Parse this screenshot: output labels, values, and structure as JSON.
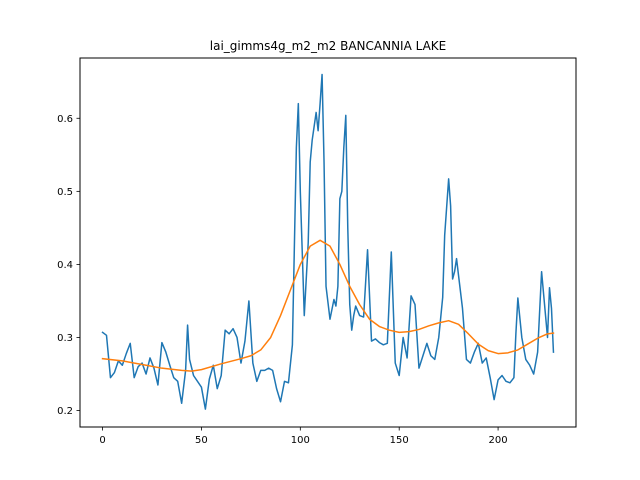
{
  "chart_data": {
    "type": "line",
    "title": "lai_gimms4g_m2_m2 BANCANNIA LAKE",
    "xlabel": "",
    "ylabel": "",
    "xlim": [
      -11.4,
      239.4
    ],
    "ylim": [
      0.1775,
      0.6825
    ],
    "xticks": [
      0,
      50,
      100,
      150,
      200
    ],
    "yticks": [
      0.2,
      0.3,
      0.4,
      0.5,
      0.6
    ],
    "xtick_labels": [
      "0",
      "50",
      "100",
      "150",
      "200"
    ],
    "ytick_labels": [
      "0.2",
      "0.3",
      "0.4",
      "0.5",
      "0.6"
    ],
    "grid": false,
    "series": [
      {
        "color": "#1f77b4",
        "points": [
          [
            0,
            0.307
          ],
          [
            2,
            0.303
          ],
          [
            4,
            0.245
          ],
          [
            6,
            0.252
          ],
          [
            8,
            0.268
          ],
          [
            10,
            0.262
          ],
          [
            12,
            0.278
          ],
          [
            14,
            0.292
          ],
          [
            16,
            0.245
          ],
          [
            18,
            0.26
          ],
          [
            20,
            0.265
          ],
          [
            22,
            0.25
          ],
          [
            24,
            0.272
          ],
          [
            26,
            0.258
          ],
          [
            28,
            0.235
          ],
          [
            30,
            0.293
          ],
          [
            32,
            0.28
          ],
          [
            34,
            0.262
          ],
          [
            36,
            0.245
          ],
          [
            38,
            0.24
          ],
          [
            40,
            0.21
          ],
          [
            42,
            0.255
          ],
          [
            43,
            0.317
          ],
          [
            44,
            0.27
          ],
          [
            46,
            0.248
          ],
          [
            48,
            0.24
          ],
          [
            50,
            0.232
          ],
          [
            52,
            0.202
          ],
          [
            54,
            0.243
          ],
          [
            56,
            0.262
          ],
          [
            58,
            0.23
          ],
          [
            60,
            0.248
          ],
          [
            62,
            0.31
          ],
          [
            64,
            0.305
          ],
          [
            66,
            0.312
          ],
          [
            68,
            0.3
          ],
          [
            70,
            0.265
          ],
          [
            72,
            0.295
          ],
          [
            74,
            0.35
          ],
          [
            76,
            0.265
          ],
          [
            78,
            0.24
          ],
          [
            80,
            0.255
          ],
          [
            82,
            0.255
          ],
          [
            84,
            0.258
          ],
          [
            86,
            0.255
          ],
          [
            88,
            0.23
          ],
          [
            90,
            0.212
          ],
          [
            92,
            0.24
          ],
          [
            94,
            0.238
          ],
          [
            96,
            0.29
          ],
          [
            98,
            0.56
          ],
          [
            99,
            0.62
          ],
          [
            100,
            0.5
          ],
          [
            102,
            0.33
          ],
          [
            104,
            0.43
          ],
          [
            105,
            0.54
          ],
          [
            106,
            0.57
          ],
          [
            108,
            0.608
          ],
          [
            109,
            0.583
          ],
          [
            110,
            0.62
          ],
          [
            111,
            0.66
          ],
          [
            112,
            0.54
          ],
          [
            113,
            0.37
          ],
          [
            115,
            0.325
          ],
          [
            117,
            0.352
          ],
          [
            118,
            0.343
          ],
          [
            119,
            0.37
          ],
          [
            120,
            0.49
          ],
          [
            121,
            0.5
          ],
          [
            122,
            0.56
          ],
          [
            123,
            0.604
          ],
          [
            124,
            0.45
          ],
          [
            125,
            0.345
          ],
          [
            126,
            0.31
          ],
          [
            127,
            0.33
          ],
          [
            128,
            0.343
          ],
          [
            130,
            0.33
          ],
          [
            132,
            0.328
          ],
          [
            134,
            0.42
          ],
          [
            136,
            0.295
          ],
          [
            138,
            0.298
          ],
          [
            140,
            0.293
          ],
          [
            142,
            0.29
          ],
          [
            144,
            0.292
          ],
          [
            146,
            0.417
          ],
          [
            148,
            0.265
          ],
          [
            150,
            0.248
          ],
          [
            152,
            0.3
          ],
          [
            154,
            0.272
          ],
          [
            156,
            0.357
          ],
          [
            158,
            0.345
          ],
          [
            160,
            0.258
          ],
          [
            162,
            0.275
          ],
          [
            164,
            0.292
          ],
          [
            166,
            0.275
          ],
          [
            168,
            0.27
          ],
          [
            170,
            0.3
          ],
          [
            172,
            0.355
          ],
          [
            173,
            0.44
          ],
          [
            175,
            0.517
          ],
          [
            176,
            0.48
          ],
          [
            177,
            0.38
          ],
          [
            178,
            0.39
          ],
          [
            179,
            0.408
          ],
          [
            180,
            0.385
          ],
          [
            182,
            0.34
          ],
          [
            184,
            0.27
          ],
          [
            186,
            0.265
          ],
          [
            188,
            0.28
          ],
          [
            190,
            0.292
          ],
          [
            192,
            0.265
          ],
          [
            194,
            0.272
          ],
          [
            196,
            0.245
          ],
          [
            198,
            0.215
          ],
          [
            200,
            0.242
          ],
          [
            202,
            0.248
          ],
          [
            204,
            0.24
          ],
          [
            206,
            0.238
          ],
          [
            208,
            0.245
          ],
          [
            209,
            0.305
          ],
          [
            210,
            0.354
          ],
          [
            212,
            0.3
          ],
          [
            214,
            0.27
          ],
          [
            216,
            0.262
          ],
          [
            218,
            0.25
          ],
          [
            220,
            0.28
          ],
          [
            222,
            0.39
          ],
          [
            224,
            0.33
          ],
          [
            225,
            0.3
          ],
          [
            226,
            0.368
          ],
          [
            227,
            0.34
          ],
          [
            228,
            0.28
          ]
        ]
      },
      {
        "color": "#ff7f0e",
        "points": [
          [
            0,
            0.271
          ],
          [
            10,
            0.268
          ],
          [
            20,
            0.263
          ],
          [
            30,
            0.258
          ],
          [
            40,
            0.255
          ],
          [
            45,
            0.254
          ],
          [
            50,
            0.256
          ],
          [
            60,
            0.264
          ],
          [
            70,
            0.271
          ],
          [
            75,
            0.275
          ],
          [
            80,
            0.283
          ],
          [
            85,
            0.3
          ],
          [
            90,
            0.33
          ],
          [
            95,
            0.365
          ],
          [
            100,
            0.4
          ],
          [
            105,
            0.425
          ],
          [
            110,
            0.433
          ],
          [
            115,
            0.425
          ],
          [
            120,
            0.4
          ],
          [
            125,
            0.37
          ],
          [
            130,
            0.345
          ],
          [
            135,
            0.325
          ],
          [
            140,
            0.315
          ],
          [
            145,
            0.31
          ],
          [
            150,
            0.307
          ],
          [
            155,
            0.308
          ],
          [
            160,
            0.311
          ],
          [
            165,
            0.316
          ],
          [
            170,
            0.32
          ],
          [
            175,
            0.323
          ],
          [
            180,
            0.318
          ],
          [
            185,
            0.305
          ],
          [
            190,
            0.291
          ],
          [
            195,
            0.282
          ],
          [
            200,
            0.278
          ],
          [
            205,
            0.279
          ],
          [
            210,
            0.283
          ],
          [
            215,
            0.291
          ],
          [
            220,
            0.299
          ],
          [
            225,
            0.305
          ],
          [
            228,
            0.306
          ]
        ]
      }
    ]
  }
}
